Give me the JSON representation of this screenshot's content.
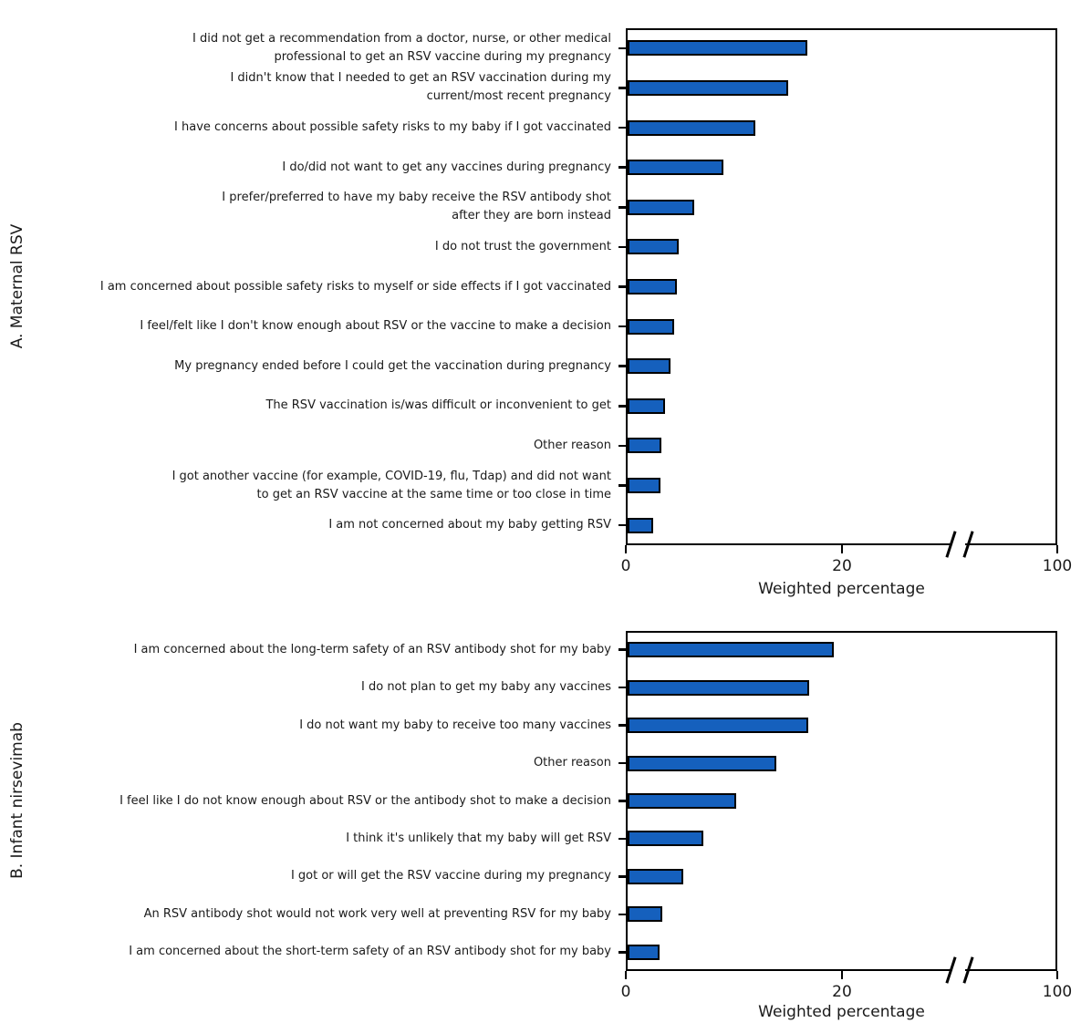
{
  "figure": {
    "bar_fill_color": "#1560BD",
    "bar_border_color": "#000000",
    "axis_color": "#000000"
  },
  "chart_data": [
    {
      "type": "bar",
      "orientation": "horizontal",
      "panel_label": "A. Maternal RSV",
      "xlabel": "Weighted percentage",
      "xlim": [
        0,
        100
      ],
      "x_ticks": [
        0,
        20,
        100
      ],
      "x_tick_labels": [
        "0",
        "20",
        "100"
      ],
      "axis_break_between": [
        20,
        100
      ],
      "grid": false,
      "legend": false,
      "categories": [
        "I did not get a recommendation from a doctor, nurse, or other medical\nprofessional to get an RSV vaccine during my pregnancy",
        "I didn't know that I needed to get an RSV vaccination during my\ncurrent/most recent pregnancy",
        "I have concerns about possible safety risks to my baby if I got vaccinated",
        "I do/did not want to get any vaccines during pregnancy",
        "I prefer/preferred to have my baby receive the RSV antibody shot\nafter they are born instead",
        "I do not trust the government",
        "I am concerned about possible safety risks to myself or side effects if I got vaccinated",
        "I feel/felt like I don't know enough about RSV or the vaccine to make a decision",
        "My pregnancy ended before I could get the vaccination during pregnancy",
        "The RSV vaccination is/was difficult or inconvenient to get",
        "Other reason",
        "I got another vaccine (for example, COVID-19, flu, Tdap) and did not want\nto get an RSV vaccine at the same time or too close in time",
        "I am not concerned about my baby getting RSV"
      ],
      "values": [
        16.8,
        15.0,
        12.0,
        9.0,
        6.3,
        4.9,
        4.7,
        4.5,
        4.1,
        3.6,
        3.3,
        3.2,
        2.5
      ]
    },
    {
      "type": "bar",
      "orientation": "horizontal",
      "panel_label": "B. Infant nirsevimab",
      "xlabel": "Weighted percentage",
      "xlim": [
        0,
        100
      ],
      "x_ticks": [
        0,
        20,
        100
      ],
      "x_tick_labels": [
        "0",
        "20",
        "100"
      ],
      "axis_break_between": [
        20,
        100
      ],
      "grid": false,
      "legend": false,
      "categories": [
        "I am concerned about the long-term safety of an RSV antibody shot for my baby",
        "I do not plan to get my baby any vaccines",
        "I do not want my baby to receive too many vaccines",
        "Other reason",
        "I feel like I do not know enough about RSV or the antibody shot to make a decision",
        "I think it's unlikely that my baby will get RSV",
        "I got or will get the RSV vaccine during my pregnancy",
        "An RSV antibody shot would not work very well at preventing RSV for my baby",
        "I am concerned about the short-term safety of an RSV antibody shot for my baby"
      ],
      "values": [
        19.2,
        17.0,
        16.9,
        13.9,
        10.2,
        7.2,
        5.3,
        3.4,
        3.1
      ]
    }
  ]
}
